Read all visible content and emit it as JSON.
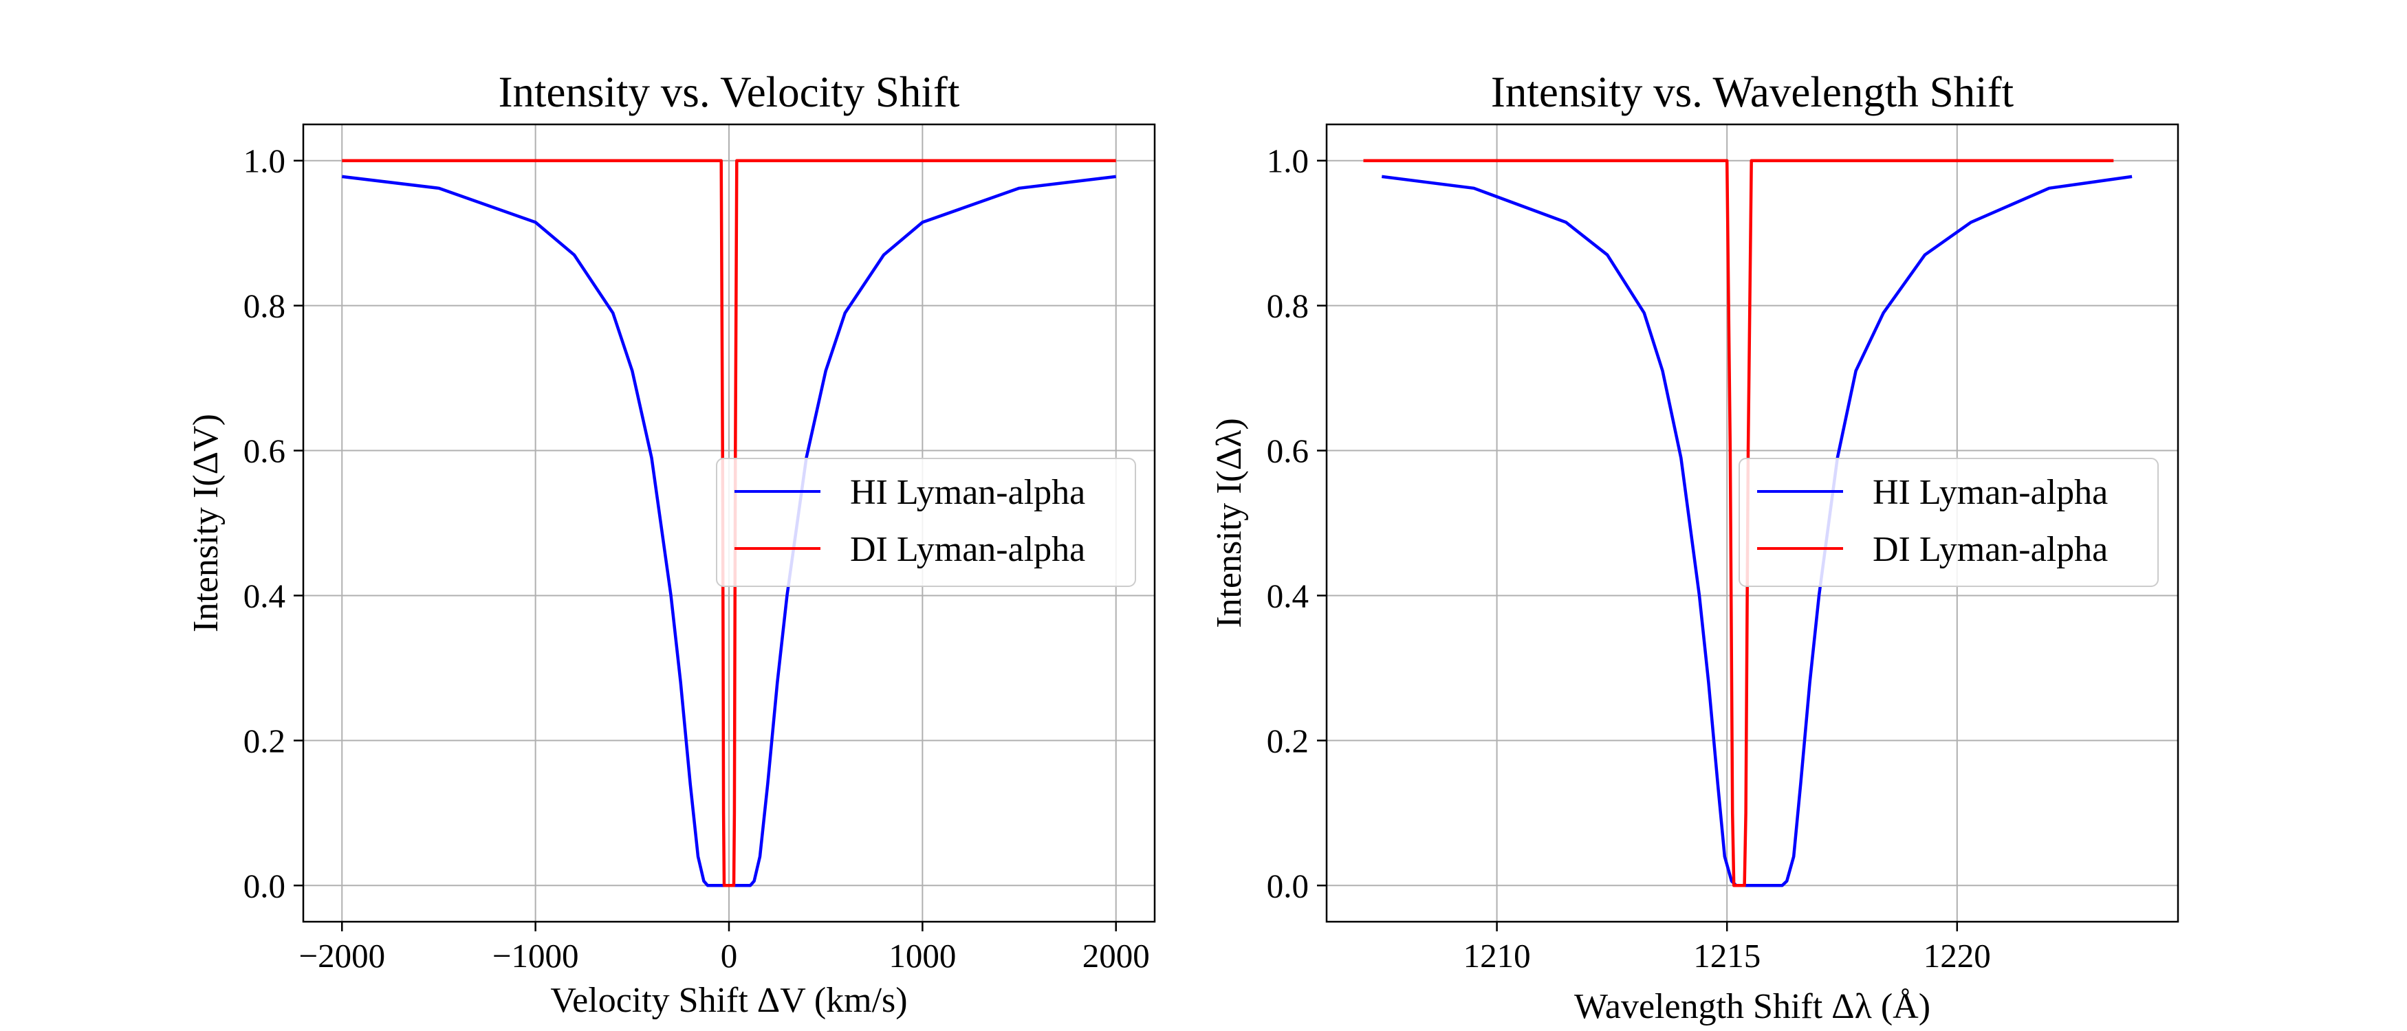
{
  "chart_data": [
    {
      "type": "line",
      "title": "Intensity vs. Velocity Shift",
      "xlabel": "Velocity Shift ΔV (km/s)",
      "ylabel": "Intensity I(ΔV)",
      "xlim": [
        -2200,
        2200
      ],
      "ylim": [
        -0.05,
        1.05
      ],
      "xticks": [
        -2000,
        -1000,
        0,
        1000,
        2000
      ],
      "xtick_labels": [
        "−2000",
        "−1000",
        "0",
        "1000",
        "2000"
      ],
      "yticks": [
        0.0,
        0.2,
        0.4,
        0.6,
        0.8,
        1.0
      ],
      "ytick_labels": [
        "0.0",
        "0.2",
        "0.4",
        "0.6",
        "0.8",
        "1.0"
      ],
      "grid": true,
      "legend_position": "center-right",
      "series": [
        {
          "name": "HI Lyman-alpha",
          "color": "#0000ff",
          "x": [
            -2000,
            -1500,
            -1000,
            -800,
            -600,
            -500,
            -400,
            -300,
            -250,
            -200,
            -160,
            -130,
            -110,
            -100,
            0,
            100,
            110,
            130,
            160,
            200,
            250,
            300,
            400,
            500,
            600,
            800,
            1000,
            1500,
            2000
          ],
          "y": [
            0.978,
            0.962,
            0.915,
            0.87,
            0.79,
            0.71,
            0.59,
            0.4,
            0.28,
            0.14,
            0.04,
            0.006,
            0.0,
            0.0,
            0.0,
            0.0,
            0.0,
            0.006,
            0.04,
            0.14,
            0.28,
            0.4,
            0.59,
            0.71,
            0.79,
            0.87,
            0.915,
            0.962,
            0.978
          ]
        },
        {
          "name": "DI Lyman-alpha",
          "color": "#ff0000",
          "x": [
            -2000,
            -40,
            -33,
            -28,
            -25,
            25,
            28,
            33,
            40,
            2000
          ],
          "y": [
            1.0,
            1.0,
            0.6,
            0.1,
            0.0,
            0.0,
            0.1,
            0.6,
            1.0,
            1.0
          ]
        }
      ]
    },
    {
      "type": "line",
      "title": "Intensity vs. Wavelength Shift",
      "xlabel": "Wavelength Shift Δλ (Å)",
      "ylabel": "Intensity I(Δλ)",
      "xlim": [
        1206.3,
        1224.8
      ],
      "ylim": [
        -0.05,
        1.05
      ],
      "xticks": [
        1210,
        1215,
        1220
      ],
      "xtick_labels": [
        "1210",
        "1215",
        "1220"
      ],
      "yticks": [
        0.0,
        0.2,
        0.4,
        0.6,
        0.8,
        1.0
      ],
      "ytick_labels": [
        "0.0",
        "0.2",
        "0.4",
        "0.6",
        "0.8",
        "1.0"
      ],
      "grid": true,
      "legend_position": "center-right",
      "series": [
        {
          "name": "HI Lyman-alpha",
          "color": "#0000ff",
          "x": [
            1207.5,
            1209.5,
            1211.5,
            1212.4,
            1213.2,
            1213.6,
            1214.0,
            1214.4,
            1214.6,
            1214.8,
            1214.95,
            1215.1,
            1215.2,
            1215.3,
            1215.67,
            1216.0,
            1216.2,
            1216.3,
            1216.45,
            1216.6,
            1216.8,
            1217.0,
            1217.4,
            1217.8,
            1218.4,
            1219.3,
            1220.3,
            1222.0,
            1223.8
          ],
          "y": [
            0.978,
            0.962,
            0.915,
            0.87,
            0.79,
            0.71,
            0.59,
            0.4,
            0.28,
            0.14,
            0.04,
            0.006,
            0.0,
            0.0,
            0.0,
            0.0,
            0.0,
            0.006,
            0.04,
            0.14,
            0.28,
            0.4,
            0.59,
            0.71,
            0.79,
            0.87,
            0.915,
            0.962,
            0.978
          ]
        },
        {
          "name": "DI Lyman-alpha",
          "color": "#ff0000",
          "x": [
            1207.1,
            1215.0,
            1215.07,
            1215.12,
            1215.15,
            1215.38,
            1215.41,
            1215.46,
            1215.53,
            1223.4
          ],
          "y": [
            1.0,
            1.0,
            0.6,
            0.1,
            0.0,
            0.0,
            0.1,
            0.6,
            1.0,
            1.0
          ]
        }
      ]
    }
  ]
}
